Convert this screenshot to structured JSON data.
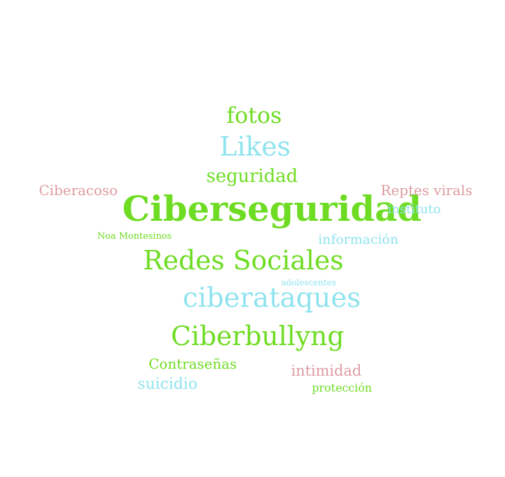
{
  "words": [
    {
      "text": "fotos",
      "color": "#6edc22"
    },
    {
      "text": "Likes",
      "color": "#8fe3ee"
    },
    {
      "text": "seguridad",
      "color": "#6edc22"
    },
    {
      "text": "Ciberacoso",
      "color": "#de9aa1"
    },
    {
      "text": "Ciberseguridad",
      "color": "#6edc22"
    },
    {
      "text": "Reptes virals",
      "color": "#de9aa1"
    },
    {
      "text": "instituto",
      "color": "#8fe3ee"
    },
    {
      "text": "Noa Montesinos",
      "color": "#6edc22"
    },
    {
      "text": "información",
      "color": "#8fe3ee"
    },
    {
      "text": "Redes Sociales",
      "color": "#6edc22"
    },
    {
      "text": "adolescentes",
      "color": "#8fe3ee"
    },
    {
      "text": "ciberataques",
      "color": "#8fe3ee"
    },
    {
      "text": "Ciberbullyng",
      "color": "#6edc22"
    },
    {
      "text": "Contraseñas",
      "color": "#6edc22"
    },
    {
      "text": "intimidad",
      "color": "#de9aa1"
    },
    {
      "text": "suicidio",
      "color": "#8fe3ee"
    },
    {
      "text": "protección",
      "color": "#6edc22"
    }
  ]
}
